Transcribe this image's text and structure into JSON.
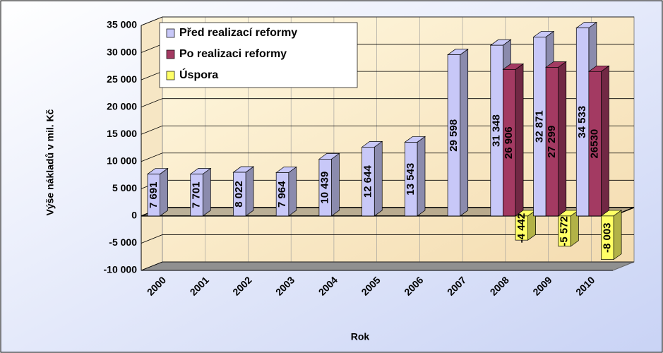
{
  "chart_data": {
    "type": "bar3d",
    "xlabel": "Rok",
    "ylabel": "Výše nákladů v mil. Kč",
    "categories": [
      "2000",
      "2001",
      "2002",
      "2003",
      "2004",
      "2005",
      "2006",
      "2007",
      "2008",
      "2009",
      "2010"
    ],
    "series": [
      {
        "name": "Před realizací reformy",
        "color": "#c8c8f8",
        "label_color": "#ffff33",
        "values": [
          7691,
          7701,
          8022,
          7964,
          10439,
          12644,
          13543,
          29598,
          31348,
          32871,
          34533
        ],
        "value_labels": [
          "7 691",
          "7 701",
          "8 022",
          "7 964",
          "10 439",
          "12 644",
          "13 543",
          "29 598",
          "31 348",
          "32 871",
          "34 533"
        ]
      },
      {
        "name": "Po realizaci reformy",
        "color": "#a33a62",
        "label_color": "#ffffff",
        "values": [
          null,
          null,
          null,
          null,
          null,
          null,
          null,
          null,
          26906,
          27299,
          26530
        ],
        "value_labels": [
          null,
          null,
          null,
          null,
          null,
          null,
          null,
          null,
          "26 906",
          "27 299",
          "26530"
        ]
      },
      {
        "name": "Úspora",
        "color": "#ffff66",
        "label_color": "#1a1a99",
        "values": [
          null,
          null,
          null,
          null,
          null,
          null,
          null,
          null,
          -4442,
          -5572,
          -8003
        ],
        "value_labels": [
          null,
          null,
          null,
          null,
          null,
          null,
          null,
          null,
          "-4 442",
          "-5 572",
          "-8 003"
        ]
      }
    ],
    "ylim": [
      -10000,
      35000
    ],
    "yticks": [
      {
        "value": -10000,
        "label": "-10 000"
      },
      {
        "value": -5000,
        "label": "-5 000"
      },
      0,
      {
        "value": 5000,
        "label": "5 000"
      },
      {
        "value": 10000,
        "label": "10 000"
      },
      {
        "value": 15000,
        "label": "15 000"
      },
      {
        "value": 20000,
        "label": "20 000"
      },
      {
        "value": 25000,
        "label": "25 000"
      },
      {
        "value": 30000,
        "label": "30 000"
      },
      {
        "value": 35000,
        "label": "35 000"
      }
    ],
    "grid": true,
    "legend": "upper left"
  }
}
